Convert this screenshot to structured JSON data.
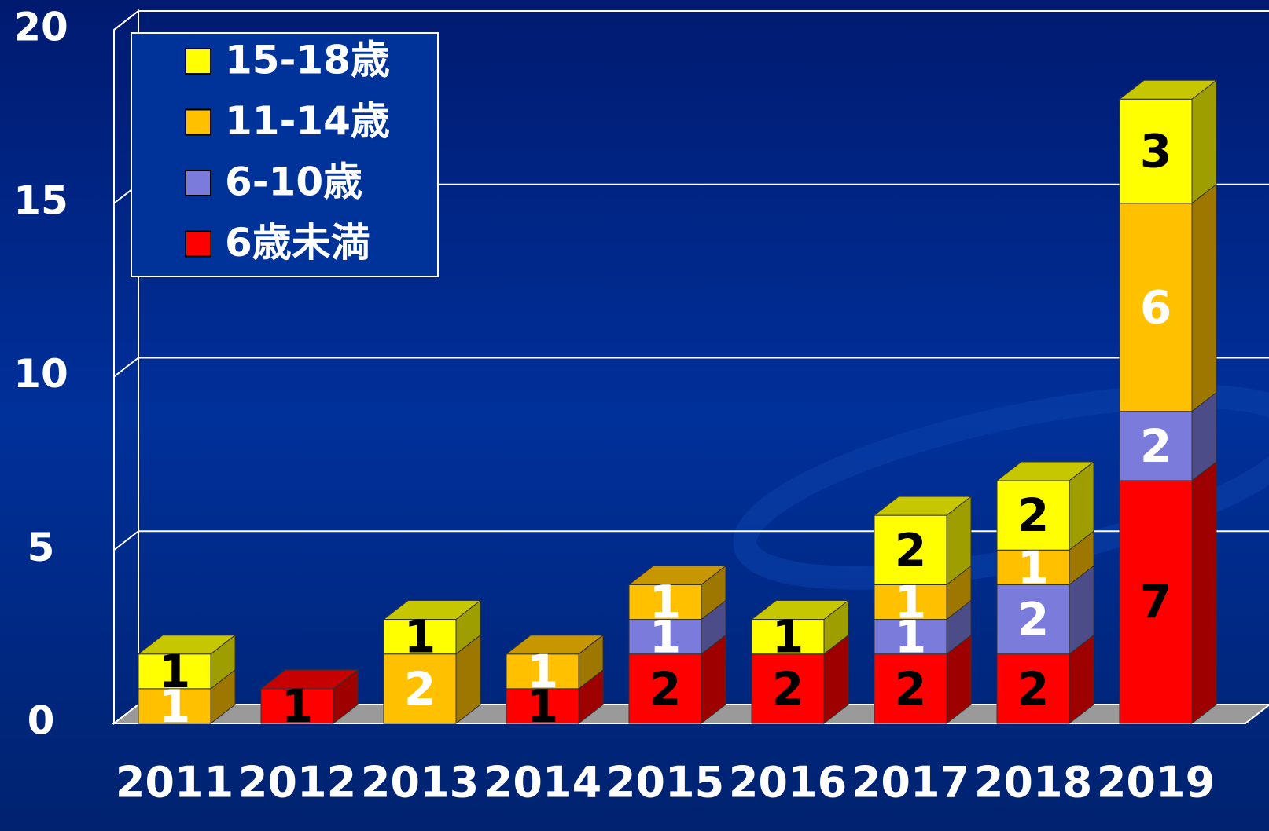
{
  "chart_data": {
    "type": "bar3d_stacked",
    "categories": [
      "2011",
      "2012",
      "2013",
      "2014",
      "2015",
      "2016",
      "2017",
      "2018",
      "2019"
    ],
    "series": [
      {
        "name": "6歳未満",
        "color": "#ff0000",
        "label_color": "#000000",
        "values": [
          0,
          1,
          0,
          1,
          2,
          2,
          2,
          2,
          7
        ]
      },
      {
        "name": "6-10歳",
        "color": "#7b7bdb",
        "label_color": "#ffffff",
        "values": [
          0,
          0,
          0,
          0,
          1,
          0,
          1,
          2,
          2
        ]
      },
      {
        "name": "11-14歳",
        "color": "#ffc000",
        "label_color": "#ffffff",
        "values": [
          1,
          0,
          2,
          1,
          1,
          0,
          1,
          1,
          6
        ]
      },
      {
        "name": "15-18歳",
        "color": "#ffff00",
        "label_color": "#000000",
        "values": [
          1,
          0,
          1,
          0,
          0,
          1,
          2,
          2,
          3
        ]
      }
    ],
    "ylim": [
      0,
      20
    ],
    "yticks": [
      0,
      5,
      10,
      15,
      20
    ],
    "grid": true,
    "legend": "upper left"
  }
}
